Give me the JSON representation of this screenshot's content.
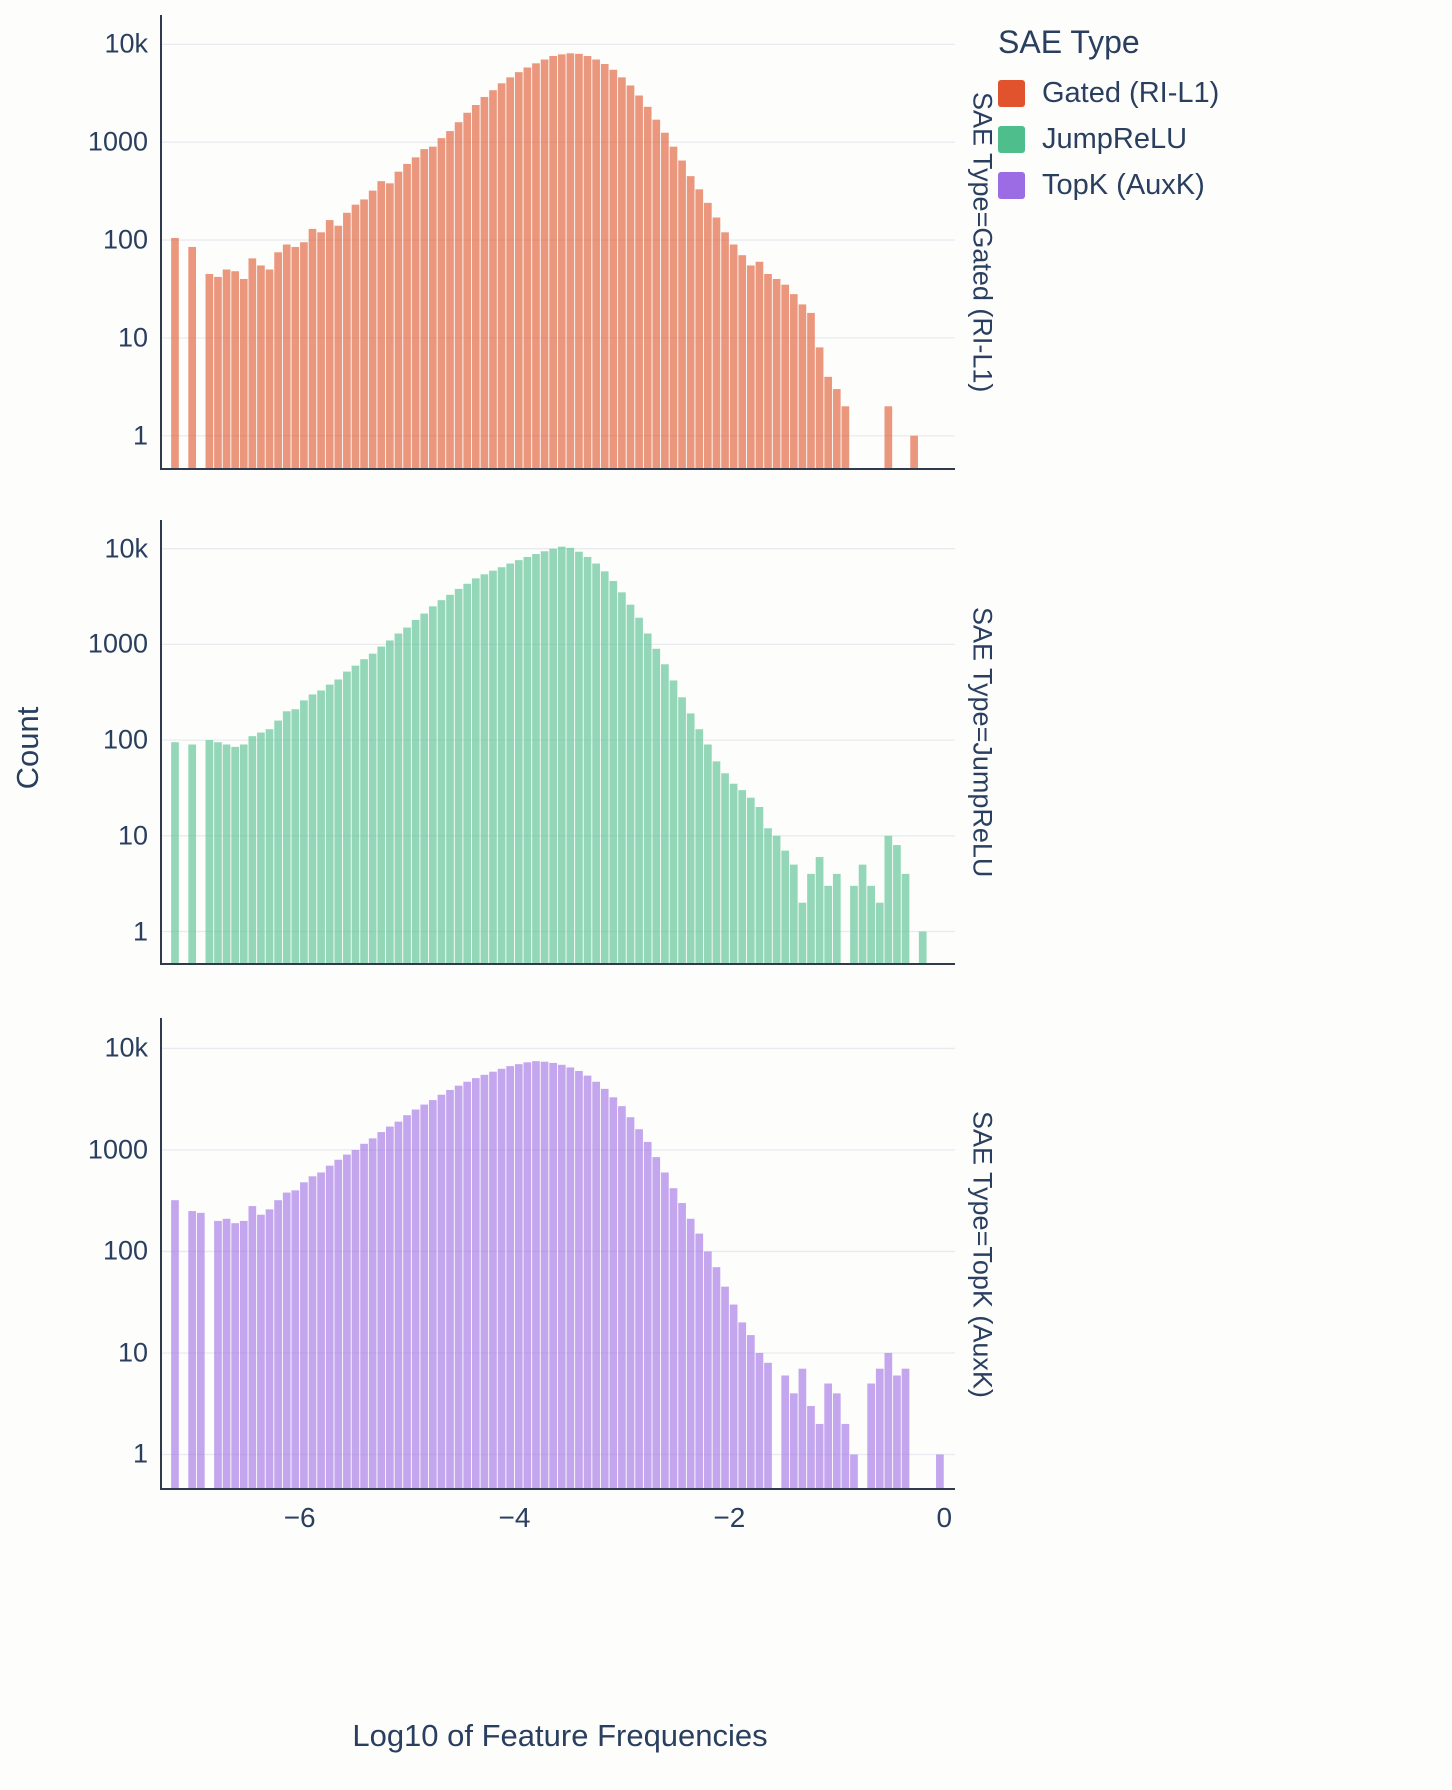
{
  "figure": {
    "ylabel": "Count",
    "xlabel": "Log10 of Feature Frequencies"
  },
  "legend": {
    "title": "SAE Type",
    "items": [
      {
        "label": "Gated (RI-L1)",
        "color": "#e0532c"
      },
      {
        "label": "JumpReLU",
        "color": "#4dbe8c"
      },
      {
        "label": "TopK (AuxK)",
        "color": "#9c6ce4"
      }
    ]
  },
  "chart_data": {
    "type": "bar",
    "subtype": "faceted-histogram",
    "title": "",
    "xlabel": "Log10 of Feature Frequencies",
    "ylabel": "Count",
    "y_scale": "log",
    "x_range": [
      -7.3,
      0.1
    ],
    "y_log_range": [
      -0.35,
      4.3
    ],
    "x_tick_values": [
      -6,
      -4,
      -2,
      0
    ],
    "x_tick_labels": [
      "−6",
      "−4",
      "−2",
      "0"
    ],
    "y_tick_values": [
      1,
      10,
      100,
      1000,
      10000
    ],
    "y_tick_labels": [
      "1",
      "10",
      "100",
      "1000",
      "10k"
    ],
    "bin_start": -7.2,
    "bin_width": 0.08,
    "grid_color": "#e9ebf1",
    "axis_color": "#2f3b4c",
    "bar_opacity": 0.6,
    "facets": [
      {
        "label": "SAE Type=Gated (RI-L1)",
        "series": "Gated (RI-L1)",
        "color": "#e0532c",
        "counts": [
          105,
          0,
          85,
          0,
          45,
          42,
          50,
          48,
          40,
          65,
          55,
          50,
          75,
          90,
          85,
          95,
          130,
          120,
          160,
          140,
          190,
          230,
          260,
          320,
          400,
          380,
          500,
          600,
          700,
          850,
          900,
          1100,
          1300,
          1600,
          2000,
          2400,
          2900,
          3400,
          4000,
          4600,
          5200,
          5800,
          6400,
          7000,
          7600,
          7900,
          8100,
          8000,
          7600,
          7000,
          6300,
          5500,
          4600,
          3800,
          3000,
          2300,
          1700,
          1250,
          900,
          650,
          450,
          330,
          240,
          170,
          120,
          90,
          70,
          55,
          60,
          45,
          40,
          35,
          28,
          22,
          18,
          8,
          4,
          3,
          2,
          0,
          0,
          0,
          0,
          2,
          0,
          0,
          1,
          0,
          0,
          0
        ]
      },
      {
        "label": "SAE Type=JumpReLU",
        "series": "JumpReLU",
        "color": "#4dbe8c",
        "counts": [
          95,
          0,
          90,
          0,
          100,
          95,
          90,
          85,
          90,
          110,
          120,
          130,
          160,
          200,
          210,
          260,
          300,
          330,
          380,
          430,
          520,
          600,
          700,
          800,
          950,
          1100,
          1300,
          1500,
          1800,
          2100,
          2500,
          2900,
          3300,
          3800,
          4300,
          4900,
          5400,
          5900,
          6400,
          7000,
          7600,
          8200,
          8800,
          9400,
          10000,
          10500,
          10200,
          9300,
          8200,
          7000,
          5800,
          4600,
          3500,
          2600,
          1900,
          1300,
          900,
          620,
          420,
          280,
          190,
          130,
          90,
          60,
          45,
          35,
          30,
          25,
          20,
          12,
          10,
          7,
          5,
          2,
          4,
          6,
          3,
          4,
          0,
          3,
          5,
          3,
          2,
          10,
          8,
          4,
          0,
          1,
          0,
          0
        ]
      },
      {
        "label": "SAE Type=TopK (AuxK)",
        "series": "TopK (AuxK)",
        "color": "#9c6ce4",
        "counts": [
          320,
          0,
          250,
          240,
          0,
          200,
          210,
          190,
          200,
          280,
          230,
          260,
          320,
          380,
          400,
          480,
          550,
          600,
          700,
          800,
          900,
          1000,
          1150,
          1300,
          1500,
          1700,
          1900,
          2200,
          2500,
          2800,
          3100,
          3500,
          3900,
          4300,
          4700,
          5100,
          5500,
          5900,
          6300,
          6700,
          7000,
          7300,
          7500,
          7400,
          7200,
          6900,
          6500,
          6000,
          5400,
          4700,
          4000,
          3300,
          2700,
          2100,
          1600,
          1200,
          850,
          600,
          420,
          300,
          210,
          150,
          100,
          70,
          45,
          30,
          20,
          15,
          10,
          8,
          0,
          6,
          4,
          7,
          3,
          2,
          5,
          4,
          2,
          1,
          0,
          5,
          7,
          10,
          6,
          7,
          0,
          0,
          0,
          1
        ]
      }
    ]
  }
}
